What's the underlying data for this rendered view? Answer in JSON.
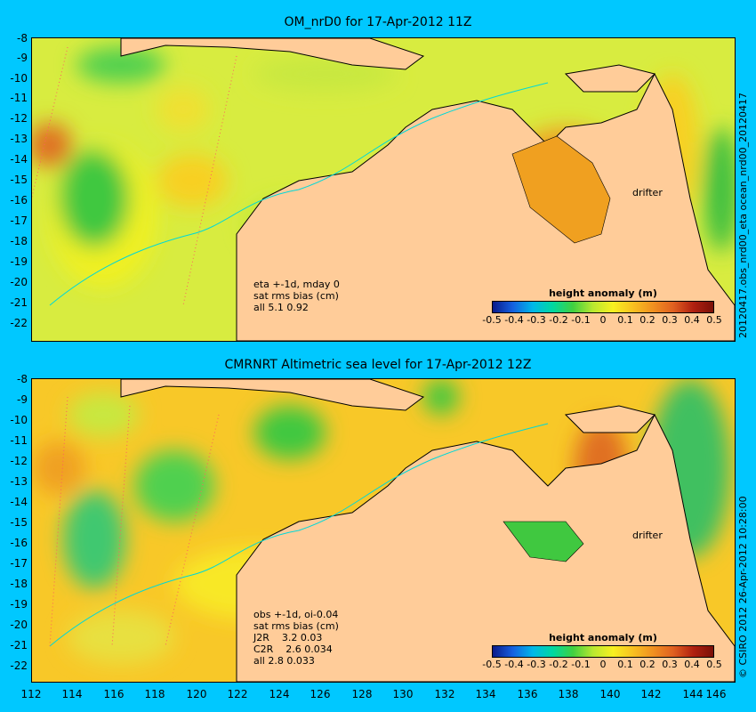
{
  "panels": [
    {
      "title": "OM_nrD0 for 17-Apr-2012 11Z",
      "info": [
        "eta +-1d, mday 0",
        "sat rms bias (cm)",
        "all 5.1 0.92"
      ],
      "side_label": "20120417.obs_nrd00_eta   ocean_nrd00_20120417",
      "drifter_label": "drifter"
    },
    {
      "title": "CMRNRT Altimetric sea level  for 17-Apr-2012 12Z",
      "info": [
        "obs +-1d, oi-0.04",
        "sat rms bias (cm)",
        "J2R    3.2 0.03",
        "C2R    2.6 0.034",
        "all 2.8 0.033"
      ],
      "side_label": "© CSIRO 2012    26-Apr-2012 10:28:00",
      "drifter_label": "drifter"
    }
  ],
  "legend": {
    "title": "height anomaly (m)",
    "ticks": [
      "-0.5",
      "-0.4",
      "-0.3",
      "-0.2",
      "-0.1",
      "0",
      "0.1",
      "0.2",
      "0.3",
      "0.4",
      "0.5"
    ]
  },
  "y_ticks": [
    "-8",
    "-9",
    "-10",
    "-11",
    "-12",
    "-13",
    "-14",
    "-15",
    "-16",
    "-17",
    "-18",
    "-19",
    "-20",
    "-21",
    "-22"
  ],
  "x_ticks": [
    "112",
    "114",
    "116",
    "118",
    "120",
    "122",
    "124",
    "126",
    "128",
    "130",
    "132",
    "134",
    "136",
    "138",
    "140",
    "142",
    "144",
    "146"
  ],
  "colors": {
    "background": "#00c8ff",
    "land": "#ffcc99",
    "arrow": "#ff00ff",
    "coast_line": "#00d8d8"
  }
}
